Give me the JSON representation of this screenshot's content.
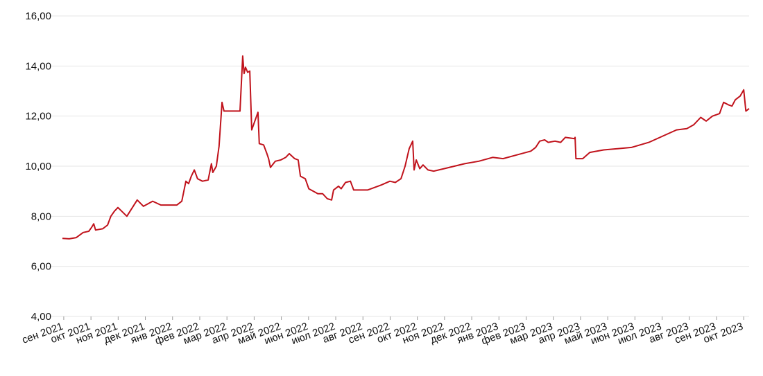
{
  "chart_data": {
    "type": "line",
    "x": [
      -0.05,
      0.2,
      0.46,
      0.71,
      0.92,
      1.02,
      1.1,
      1.17,
      1.43,
      1.61,
      1.73,
      1.86,
      1.99,
      2.32,
      2.7,
      2.93,
      3.27,
      3.57,
      4.16,
      4.34,
      4.49,
      4.59,
      4.69,
      4.8,
      4.92,
      5.1,
      5.31,
      5.43,
      5.48,
      5.61,
      5.71,
      5.82,
      5.89,
      6.48,
      6.58,
      6.63,
      6.68,
      6.76,
      6.84,
      6.91,
      7.14,
      7.19,
      7.35,
      7.47,
      7.53,
      7.6,
      7.78,
      7.98,
      8.16,
      8.29,
      8.49,
      8.62,
      8.7,
      8.88,
      9.01,
      9.18,
      9.34,
      9.52,
      9.69,
      9.85,
      9.92,
      10.1,
      10.2,
      10.36,
      10.54,
      10.66,
      11.17,
      11.43,
      11.68,
      11.99,
      12.19,
      12.4,
      12.55,
      12.7,
      12.83,
      12.88,
      12.96,
      13.09,
      13.21,
      13.39,
      13.6,
      13.98,
      14.36,
      14.74,
      15.26,
      15.77,
      16.15,
      16.66,
      17.17,
      17.35,
      17.5,
      17.68,
      17.81,
      18.06,
      18.27,
      18.44,
      18.78,
      18.8,
      18.83,
      19.08,
      19.34,
      19.85,
      20.36,
      20.87,
      21.51,
      22.02,
      22.53,
      22.91,
      23.16,
      23.42,
      23.62,
      23.85,
      24.11,
      24.26,
      24.44,
      24.57,
      24.69,
      24.87,
      25.0,
      25.08,
      25.2
    ],
    "series": [
      {
        "color": "#c0121b",
        "values": [
          7.12,
          7.1,
          7.15,
          7.35,
          7.4,
          7.55,
          7.7,
          7.45,
          7.5,
          7.65,
          8.0,
          8.2,
          8.35,
          8.0,
          8.65,
          8.4,
          8.6,
          8.45,
          8.45,
          8.6,
          9.4,
          9.3,
          9.6,
          9.85,
          9.5,
          9.4,
          9.45,
          10.1,
          9.75,
          10.0,
          10.8,
          12.55,
          12.2,
          12.2,
          14.4,
          13.7,
          13.95,
          13.75,
          13.8,
          11.45,
          12.15,
          10.9,
          10.85,
          10.5,
          10.3,
          9.95,
          10.2,
          10.25,
          10.35,
          10.5,
          10.3,
          10.25,
          9.6,
          9.5,
          9.1,
          9.0,
          8.9,
          8.9,
          8.7,
          8.65,
          9.05,
          9.2,
          9.1,
          9.35,
          9.4,
          9.05,
          9.05,
          9.15,
          9.25,
          9.4,
          9.35,
          9.5,
          10.0,
          10.7,
          11.0,
          9.85,
          10.25,
          9.9,
          10.05,
          9.85,
          9.8,
          9.9,
          10.0,
          10.1,
          10.2,
          10.35,
          10.3,
          10.45,
          10.6,
          10.75,
          11.0,
          11.05,
          10.95,
          11.0,
          10.95,
          11.15,
          11.1,
          11.15,
          10.3,
          10.3,
          10.55,
          10.65,
          10.7,
          10.75,
          10.95,
          11.2,
          11.45,
          11.5,
          11.65,
          11.95,
          11.8,
          12.0,
          12.1,
          12.55,
          12.45,
          12.4,
          12.65,
          12.8,
          13.05,
          12.2,
          12.3
        ]
      }
    ],
    "xlim": [
      -0.1,
      25.25
    ],
    "xticks": [
      {
        "value": 0,
        "label": "сен 2021"
      },
      {
        "value": 1,
        "label": "окт 2021"
      },
      {
        "value": 2,
        "label": "ноя 2021"
      },
      {
        "value": 3,
        "label": "дек 2021"
      },
      {
        "value": 4,
        "label": "янв 2022"
      },
      {
        "value": 5,
        "label": "фев 2022"
      },
      {
        "value": 6,
        "label": "мар 2022"
      },
      {
        "value": 7,
        "label": "апр 2022"
      },
      {
        "value": 8,
        "label": "май 2022"
      },
      {
        "value": 9,
        "label": "июн 2022"
      },
      {
        "value": 10,
        "label": "июл 2022"
      },
      {
        "value": 11,
        "label": "авг 2022"
      },
      {
        "value": 12,
        "label": "сен 2022"
      },
      {
        "value": 13,
        "label": "окт 2022"
      },
      {
        "value": 14,
        "label": "ноя 2022"
      },
      {
        "value": 15,
        "label": "дек 2022"
      },
      {
        "value": 16,
        "label": "янв 2023"
      },
      {
        "value": 17,
        "label": "фев 2023"
      },
      {
        "value": 18,
        "label": "мар 2023"
      },
      {
        "value": 19,
        "label": "апр 2023"
      },
      {
        "value": 20,
        "label": "май 2023"
      },
      {
        "value": 21,
        "label": "июн 2023"
      },
      {
        "value": 22,
        "label": "июл 2023"
      },
      {
        "value": 23,
        "label": "авг 2023"
      },
      {
        "value": 24,
        "label": "сен 2023"
      },
      {
        "value": 25,
        "label": "окт 2023"
      }
    ],
    "ylim": [
      4,
      16
    ],
    "yticks": [
      {
        "value": 4,
        "label": "4,00"
      },
      {
        "value": 6,
        "label": "6,00"
      },
      {
        "value": 8,
        "label": "8,00"
      },
      {
        "value": 10,
        "label": "10,00"
      },
      {
        "value": 12,
        "label": "12,00"
      },
      {
        "value": 14,
        "label": "14,00"
      },
      {
        "value": 16,
        "label": "16,00"
      }
    ],
    "grid": true
  }
}
